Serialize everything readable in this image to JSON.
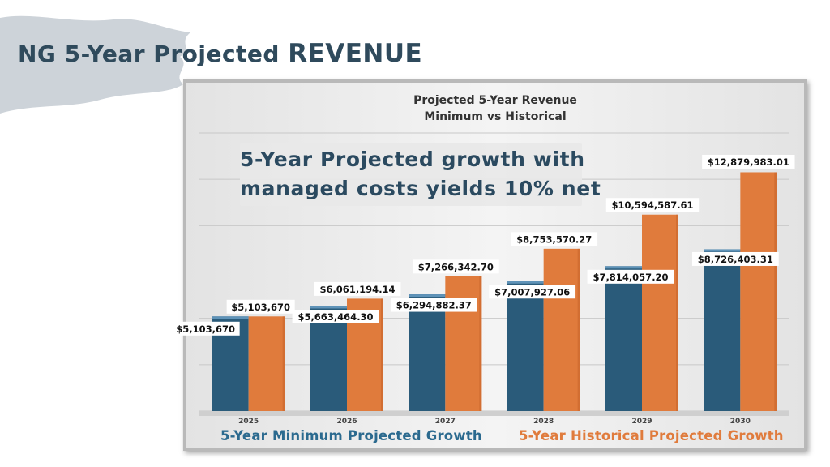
{
  "slide": {
    "title_prefix": "NG 5-Year Projected",
    "title_emphasis": "REVENUE"
  },
  "callout": {
    "line1": "5-Year Projected growth with",
    "line2": "managed costs yields 10% net"
  },
  "colors": {
    "minimum": "#2a5b7a",
    "historical": "#e07b3c",
    "brush": "#cdd3d9",
    "title": "#2f4a5c"
  },
  "chart_data": {
    "type": "bar",
    "title": "Projected 5-Year Revenue",
    "subtitle": "Minimum vs Historical",
    "xlabel": "",
    "ylabel": "",
    "grid": true,
    "ylim": [
      0,
      15000000
    ],
    "categories": [
      "2025",
      "2026",
      "2027",
      "2028",
      "2029",
      "2030"
    ],
    "series": [
      {
        "name": "5-Year Minimum Projected Growth",
        "values": [
          5103670,
          5663464.3,
          6294882.37,
          7007927.06,
          7814057.2,
          8726403.31
        ],
        "labels": [
          "$5,103,670",
          "$5,663,464.30",
          "$6,294,882.37",
          "$7,007,927.06",
          "$7,814,057.20",
          "$8,726,403.31"
        ]
      },
      {
        "name": "5-Year Historical Projected Growth",
        "values": [
          5103670,
          6061194.14,
          7266342.7,
          8753570.27,
          10594587.61,
          12879983.01
        ],
        "labels": [
          "$5,103,670",
          "$6,061,194.14",
          "$7,266,342.70",
          "$8,753,570.27",
          "$10,594,587.61",
          "$12,879,983.01"
        ]
      }
    ]
  }
}
